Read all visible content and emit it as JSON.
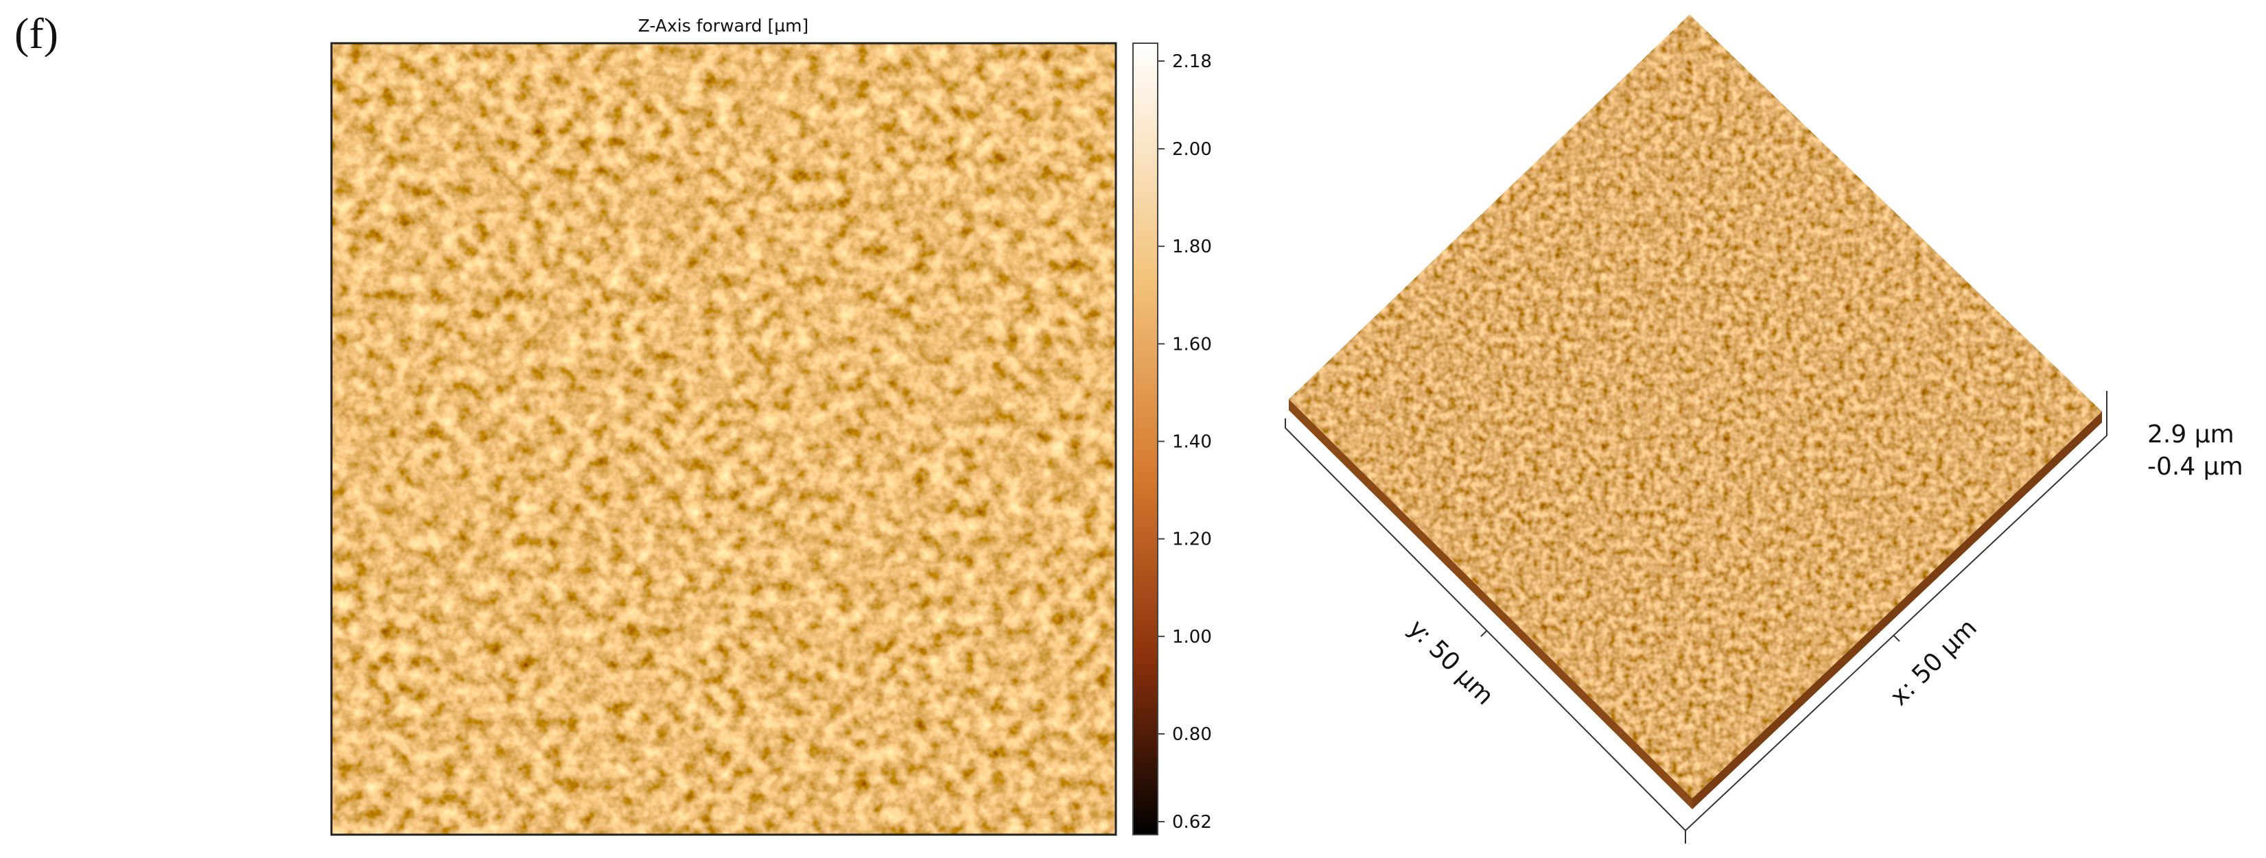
{
  "panel_label": "(f)",
  "map": {
    "title": "Z-Axis forward [µm]",
    "colorbar": {
      "lim": [
        0.62,
        2.18
      ],
      "ticks": [
        2.18,
        {
          "value": 2,
          "label": "2.00"
        },
        {
          "value": 1.8,
          "label": "1.80"
        },
        {
          "value": 1.6,
          "label": "1.60"
        },
        {
          "value": 1.4,
          "label": "1.40"
        },
        {
          "value": 1.2,
          "label": "1.20"
        },
        {
          "value": 1,
          "label": "1.00"
        },
        {
          "value": 0.8,
          "label": "0.80"
        },
        0.62
      ]
    }
  },
  "surface": {
    "y_label": "y: 50 µm",
    "x_label": "x: 50 µm",
    "z_max": "2.9 µm",
    "z_min": "-0.4 µm"
  }
}
